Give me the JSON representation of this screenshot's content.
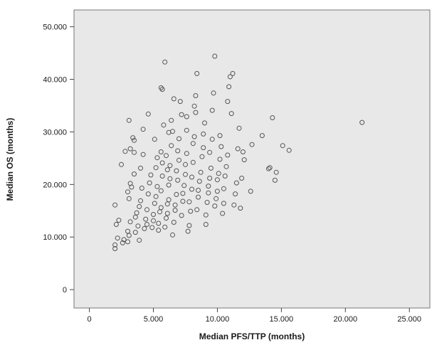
{
  "chart_data": {
    "type": "scatter",
    "title": "",
    "xlabel": "Median PFS/TTP (months)",
    "ylabel": "Median OS (months)",
    "xlim": [
      -1.2,
      26.6
    ],
    "ylim": [
      -3.5,
      53.2
    ],
    "xticks": [
      {
        "value": 0,
        "label": "0"
      },
      {
        "value": 5,
        "label": "5.000"
      },
      {
        "value": 10,
        "label": "10.000"
      },
      {
        "value": 15,
        "label": "15.000"
      },
      {
        "value": 20,
        "label": "20.000"
      },
      {
        "value": 25,
        "label": "25.000"
      }
    ],
    "yticks": [
      {
        "value": 0,
        "label": "0"
      },
      {
        "value": 10,
        "label": "10.000"
      },
      {
        "value": 20,
        "label": "20.000"
      },
      {
        "value": 30,
        "label": "30.000"
      },
      {
        "value": 40,
        "label": "40.000"
      },
      {
        "value": 50,
        "label": "50.000"
      }
    ],
    "grid": false,
    "plot_background": "#e8e8e8",
    "marker_color": "#555555",
    "points": [
      [
        2.0,
        8.5
      ],
      [
        2.0,
        7.8
      ],
      [
        2.1,
        12.4
      ],
      [
        2.0,
        16.1
      ],
      [
        2.2,
        9.8
      ],
      [
        2.3,
        13.2
      ],
      [
        2.6,
        8.9
      ],
      [
        2.7,
        9.5
      ],
      [
        2.8,
        26.3
      ],
      [
        2.5,
        23.8
      ],
      [
        3.0,
        9.1
      ],
      [
        3.1,
        10.3
      ],
      [
        3.0,
        11.1
      ],
      [
        3.2,
        12.9
      ],
      [
        3.1,
        17.3
      ],
      [
        3.0,
        18.6
      ],
      [
        3.2,
        20.2
      ],
      [
        3.3,
        19.5
      ],
      [
        3.1,
        32.2
      ],
      [
        3.2,
        26.8
      ],
      [
        3.5,
        28.4
      ],
      [
        3.4,
        28.9
      ],
      [
        3.5,
        26.1
      ],
      [
        3.5,
        22.0
      ],
      [
        3.6,
        13.8
      ],
      [
        3.7,
        14.6
      ],
      [
        3.6,
        10.9
      ],
      [
        3.8,
        12.1
      ],
      [
        3.9,
        9.4
      ],
      [
        3.9,
        15.8
      ],
      [
        4.0,
        16.9
      ],
      [
        4.1,
        19.3
      ],
      [
        4.0,
        23.1
      ],
      [
        4.2,
        25.7
      ],
      [
        4.2,
        30.5
      ],
      [
        4.3,
        11.6
      ],
      [
        4.4,
        13.4
      ],
      [
        4.5,
        12.4
      ],
      [
        4.5,
        15.2
      ],
      [
        4.6,
        18.2
      ],
      [
        4.7,
        20.3
      ],
      [
        4.8,
        21.8
      ],
      [
        4.6,
        33.4
      ],
      [
        4.9,
        11.8
      ],
      [
        5.0,
        13.1
      ],
      [
        5.0,
        14.3
      ],
      [
        5.1,
        16.4
      ],
      [
        5.2,
        17.7
      ],
      [
        5.3,
        19.6
      ],
      [
        5.2,
        23.2
      ],
      [
        5.3,
        25.1
      ],
      [
        5.1,
        28.6
      ],
      [
        5.4,
        11.3
      ],
      [
        5.4,
        12.6
      ],
      [
        5.5,
        14.8
      ],
      [
        5.6,
        15.6
      ],
      [
        5.6,
        18.8
      ],
      [
        5.7,
        21.6
      ],
      [
        5.7,
        24.1
      ],
      [
        5.6,
        26.2
      ],
      [
        5.8,
        31.3
      ],
      [
        5.6,
        38.4
      ],
      [
        5.7,
        38.1
      ],
      [
        5.9,
        43.3
      ],
      [
        5.9,
        11.9
      ],
      [
        6.0,
        13.6
      ],
      [
        6.1,
        14.5
      ],
      [
        6.1,
        16.3
      ],
      [
        6.2,
        17.1
      ],
      [
        6.2,
        19.9
      ],
      [
        6.3,
        21.1
      ],
      [
        6.1,
        22.8
      ],
      [
        6.3,
        23.6
      ],
      [
        6.0,
        25.5
      ],
      [
        6.4,
        27.4
      ],
      [
        6.2,
        29.9
      ],
      [
        6.4,
        32.2
      ],
      [
        6.6,
        36.3
      ],
      [
        6.5,
        30.1
      ],
      [
        6.5,
        10.4
      ],
      [
        6.6,
        12.8
      ],
      [
        6.7,
        15.1
      ],
      [
        6.7,
        16.1
      ],
      [
        6.8,
        18.1
      ],
      [
        6.9,
        20.8
      ],
      [
        6.8,
        22.6
      ],
      [
        7.0,
        24.6
      ],
      [
        6.9,
        26.4
      ],
      [
        7.0,
        28.7
      ],
      [
        7.1,
        35.8
      ],
      [
        7.2,
        33.3
      ],
      [
        7.2,
        14.1
      ],
      [
        7.3,
        16.8
      ],
      [
        7.3,
        18.3
      ],
      [
        7.4,
        19.8
      ],
      [
        7.5,
        21.9
      ],
      [
        7.5,
        23.8
      ],
      [
        7.6,
        25.9
      ],
      [
        7.6,
        30.3
      ],
      [
        7.6,
        32.9
      ],
      [
        7.7,
        11.1
      ],
      [
        7.8,
        12.2
      ],
      [
        7.9,
        14.9
      ],
      [
        7.8,
        16.7
      ],
      [
        8.0,
        19.1
      ],
      [
        8.0,
        21.4
      ],
      [
        8.1,
        24.2
      ],
      [
        8.1,
        27.8
      ],
      [
        8.2,
        29.1
      ],
      [
        8.2,
        34.9
      ],
      [
        8.3,
        33.7
      ],
      [
        8.3,
        36.9
      ],
      [
        8.4,
        41.1
      ],
      [
        8.4,
        15.2
      ],
      [
        8.5,
        17.6
      ],
      [
        8.5,
        18.9
      ],
      [
        8.6,
        20.6
      ],
      [
        8.7,
        22.3
      ],
      [
        8.8,
        25.3
      ],
      [
        8.9,
        27.0
      ],
      [
        8.9,
        29.6
      ],
      [
        9.0,
        31.7
      ],
      [
        9.1,
        12.4
      ],
      [
        9.1,
        14.2
      ],
      [
        9.2,
        16.6
      ],
      [
        9.3,
        18.4
      ],
      [
        9.3,
        19.7
      ],
      [
        9.4,
        21.2
      ],
      [
        9.5,
        23.1
      ],
      [
        9.4,
        26.1
      ],
      [
        9.6,
        28.6
      ],
      [
        9.6,
        34.1
      ],
      [
        9.8,
        44.4
      ],
      [
        9.7,
        37.4
      ],
      [
        9.8,
        15.9
      ],
      [
        9.9,
        17.3
      ],
      [
        10.0,
        18.7
      ],
      [
        10.0,
        20.9
      ],
      [
        10.1,
        22.1
      ],
      [
        10.2,
        24.8
      ],
      [
        10.3,
        27.2
      ],
      [
        10.2,
        29.3
      ],
      [
        10.4,
        14.5
      ],
      [
        10.5,
        16.4
      ],
      [
        10.5,
        19.2
      ],
      [
        10.6,
        21.6
      ],
      [
        10.7,
        23.4
      ],
      [
        10.8,
        25.6
      ],
      [
        10.8,
        35.8
      ],
      [
        10.9,
        38.6
      ],
      [
        11.0,
        40.5
      ],
      [
        11.1,
        33.5
      ],
      [
        11.2,
        41.1
      ],
      [
        11.3,
        16.1
      ],
      [
        11.4,
        18.2
      ],
      [
        11.5,
        20.3
      ],
      [
        11.6,
        26.8
      ],
      [
        11.7,
        30.7
      ],
      [
        11.8,
        15.5
      ],
      [
        11.9,
        21.2
      ],
      [
        12.1,
        24.7
      ],
      [
        12.0,
        26.2
      ],
      [
        12.6,
        18.7
      ],
      [
        12.7,
        27.6
      ],
      [
        13.5,
        29.3
      ],
      [
        14.0,
        23.0
      ],
      [
        14.1,
        23.2
      ],
      [
        14.3,
        32.7
      ],
      [
        14.5,
        20.8
      ],
      [
        14.6,
        22.3
      ],
      [
        15.1,
        27.4
      ],
      [
        15.6,
        26.5
      ],
      [
        21.3,
        31.8
      ]
    ]
  }
}
